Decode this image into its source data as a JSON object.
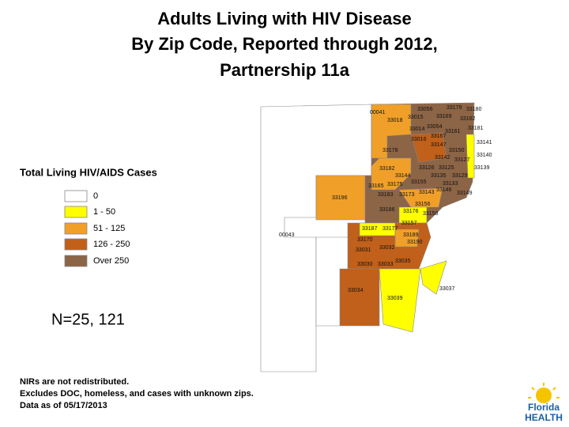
{
  "title": [
    "Adults Living with HIV Disease",
    "By Zip Code, Reported through 2012,",
    "Partnership 11a"
  ],
  "legend": {
    "title": "Total Living  HIV/AIDS Cases",
    "items": [
      {
        "label": "0",
        "color": "#ffffff"
      },
      {
        "label": "1 - 50",
        "color": "#ffff00"
      },
      {
        "label": "51 - 125",
        "color": "#f0a028"
      },
      {
        "label": "126 - 250",
        "color": "#c0601a"
      },
      {
        "label": "Over 250",
        "color": "#8c6446"
      }
    ]
  },
  "count_label": "N=25, 121",
  "notes": [
    "NIRs are not redistributed.",
    "Excludes DOC, homeless, and cases with unknown zips.",
    "Data as of 05/17/2013"
  ],
  "logo": [
    "Florida",
    "HEALTH"
  ],
  "zip_labels": [
    "00041",
    "33018",
    "33015",
    "33056",
    "33179",
    "33180",
    "33169",
    "33162",
    "33014",
    "33054",
    "33181",
    "33161",
    "33167",
    "33016",
    "33147",
    "33141",
    "33178",
    "33150",
    "33140",
    "33142",
    "33127",
    "33182",
    "33139",
    "33126",
    "33125",
    "33144",
    "33135",
    "33129",
    "33165",
    "33175",
    "33155",
    "33133",
    "33196",
    "33183",
    "33173",
    "33143",
    "33146",
    "33149",
    "33186",
    "33176",
    "33156",
    "33158",
    "33157",
    "00043",
    "33187",
    "33177",
    "33189",
    "33170",
    "33190",
    "33031",
    "33032",
    "33030",
    "33033",
    "33035",
    "33034",
    "33039",
    "33037"
  ]
}
